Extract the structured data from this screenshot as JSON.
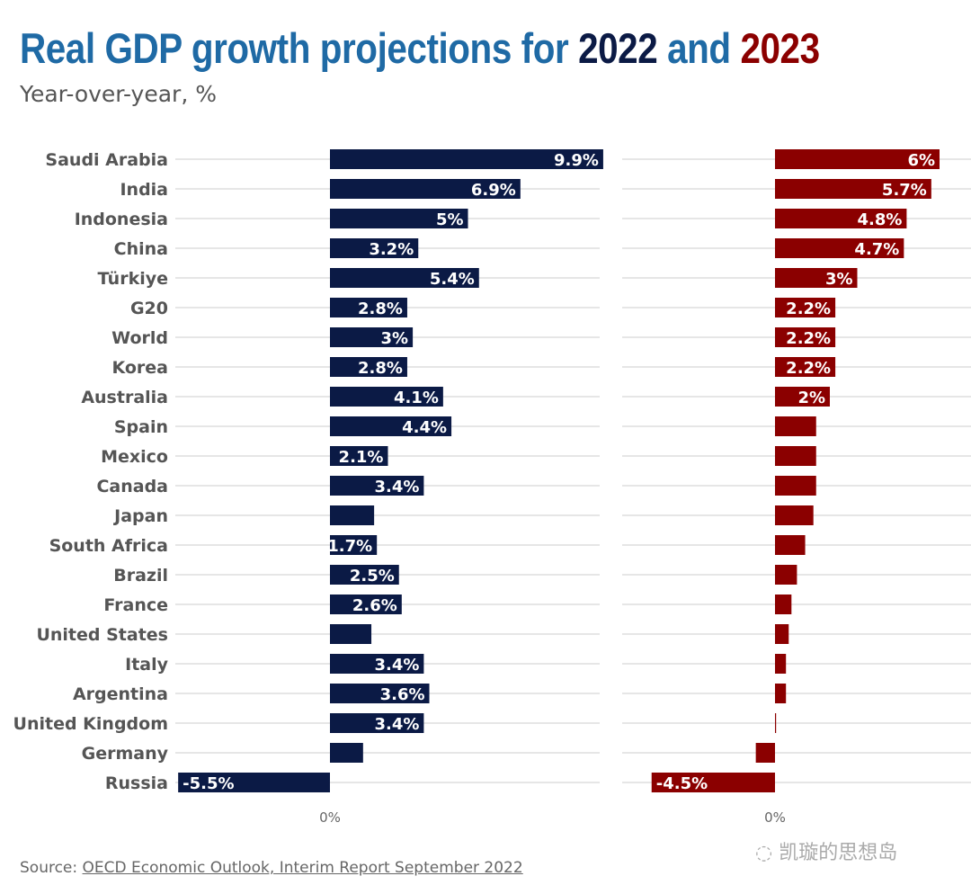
{
  "chart_data": {
    "type": "bar",
    "orientation": "horizontal",
    "title": {
      "prefix": "Real GDP growth projections for ",
      "year1": "2022",
      "middle": " and ",
      "year2": "2023"
    },
    "subtitle": "Year-over-year, %",
    "categories": [
      "Saudi Arabia",
      "India",
      "Indonesia",
      "China",
      "Türkiye",
      "G20",
      "World",
      "Korea",
      "Australia",
      "Spain",
      "Mexico",
      "Canada",
      "Japan",
      "South Africa",
      "Brazil",
      "France",
      "United States",
      "Italy",
      "Argentina",
      "United Kingdom",
      "Germany",
      "Russia"
    ],
    "series": [
      {
        "name": "2022",
        "color": "#0b1a45",
        "values": [
          9.9,
          6.9,
          5,
          3.2,
          5.4,
          2.8,
          3,
          2.8,
          4.1,
          4.4,
          2.1,
          3.4,
          1.6,
          1.7,
          2.5,
          2.6,
          1.5,
          3.4,
          3.6,
          3.4,
          1.2,
          -5.5
        ],
        "labels": [
          "9.9%",
          "6.9%",
          "5%",
          "3.2%",
          "5.4%",
          "2.8%",
          "3%",
          "2.8%",
          "4.1%",
          "4.4%",
          "2.1%",
          "3.4%",
          "",
          "1.7%",
          "2.5%",
          "2.6%",
          "",
          "3.4%",
          "3.6%",
          "3.4%",
          "",
          "-5.5%"
        ]
      },
      {
        "name": "2023",
        "color": "#8b0000",
        "values": [
          6,
          5.7,
          4.8,
          4.7,
          3,
          2.2,
          2.2,
          2.2,
          2,
          1.5,
          1.5,
          1.5,
          1.4,
          1.1,
          0.8,
          0.6,
          0.5,
          0.4,
          0.4,
          0,
          -0.7,
          -4.5
        ],
        "labels": [
          "6%",
          "5.7%",
          "4.8%",
          "4.7%",
          "3%",
          "2.2%",
          "2.2%",
          "2.2%",
          "2%",
          "",
          "",
          "",
          "",
          "",
          "",
          "",
          "",
          "",
          "",
          "",
          "",
          "-4.5%"
        ]
      }
    ],
    "axis_tick_label": "0%",
    "grid": true
  },
  "source": {
    "prefix": "Source: ",
    "link": "OECD Economic Outlook, Interim Report September 2022"
  },
  "watermark": "凯璇的思想岛"
}
